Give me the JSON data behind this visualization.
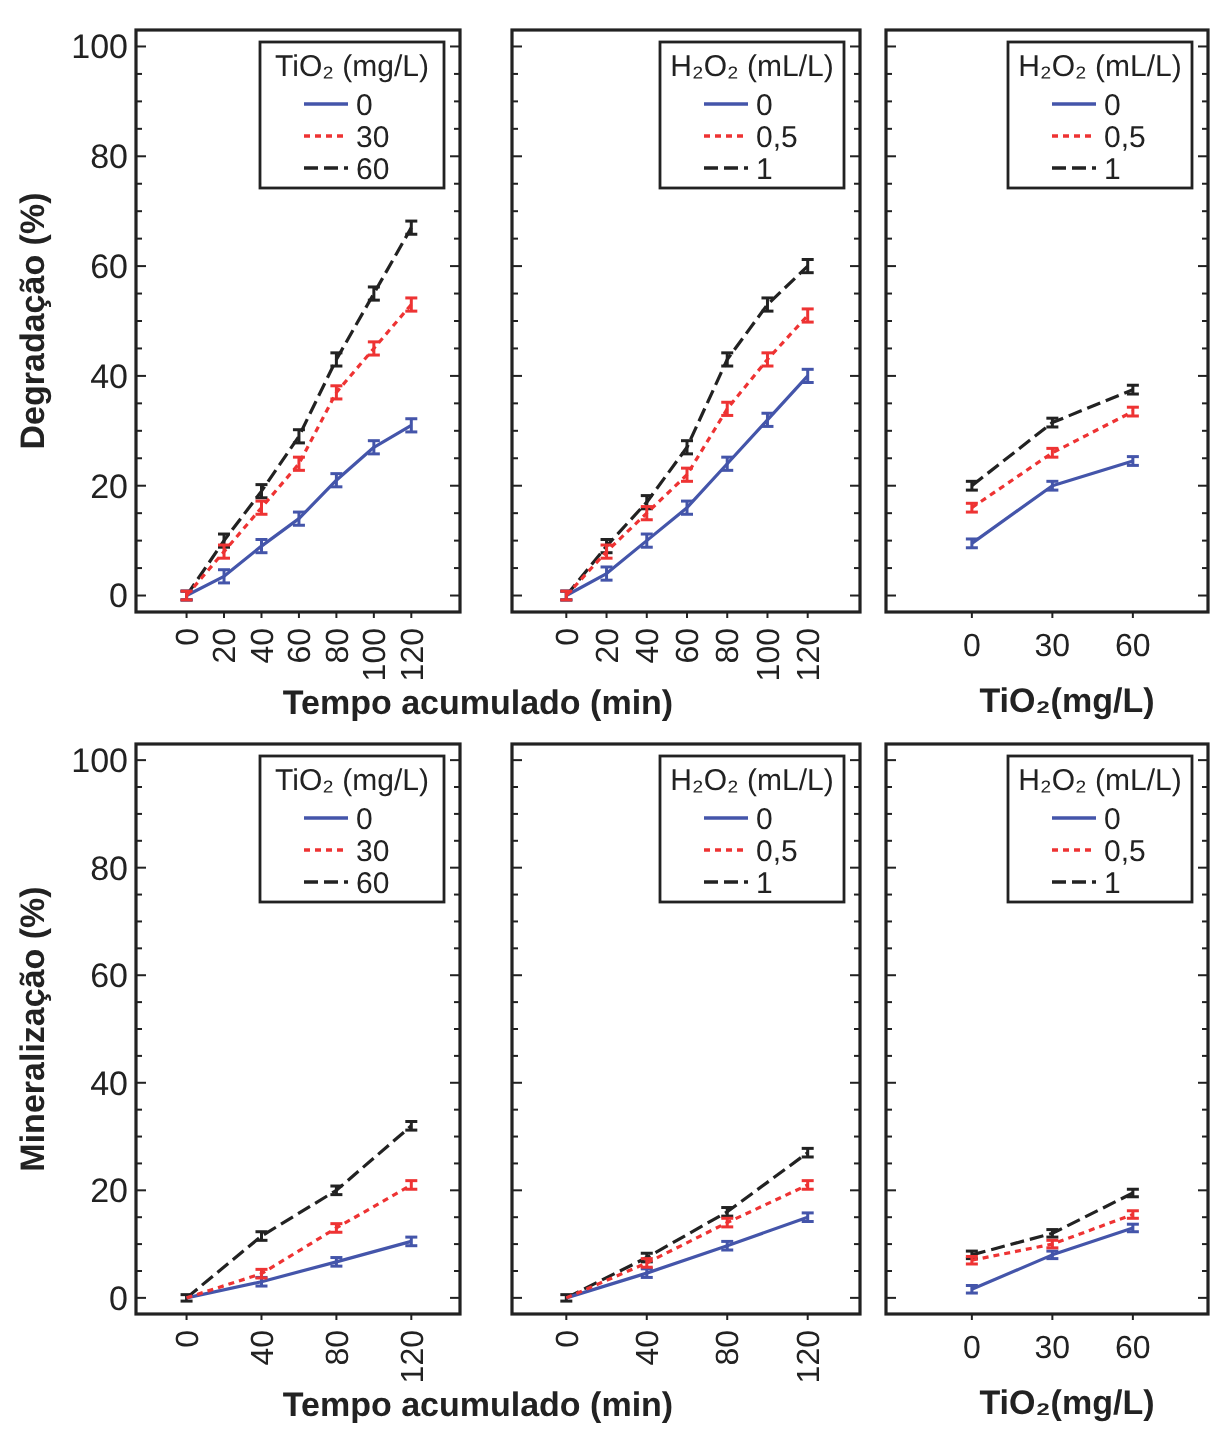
{
  "chart_data": [
    {
      "type": "line",
      "ylabel": "Degradação (%)",
      "xlabel": "Tempo acumulado (min)",
      "legend_title": "TiO₂ (mg/L)",
      "legend": "top right",
      "x": [
        0,
        20,
        40,
        60,
        80,
        100,
        120
      ],
      "xlim": [
        -27,
        146
      ],
      "xticks": [
        0,
        20,
        40,
        60,
        80,
        100,
        120
      ],
      "ylim": [
        -3,
        103
      ],
      "yticks": [
        0,
        {
          "value": 5,
          "label": null
        },
        {
          "value": 10,
          "label": null
        },
        {
          "value": 15,
          "label": null
        },
        20,
        {
          "value": 25,
          "label": null
        },
        {
          "value": 30,
          "label": null
        },
        {
          "value": 35,
          "label": null
        },
        40,
        {
          "value": 45,
          "label": null
        },
        {
          "value": 50,
          "label": null
        },
        {
          "value": 55,
          "label": null
        },
        60,
        {
          "value": 65,
          "label": null
        },
        {
          "value": 70,
          "label": null
        },
        {
          "value": 75,
          "label": null
        },
        80,
        {
          "value": 85,
          "label": null
        },
        {
          "value": 90,
          "label": null
        },
        {
          "value": 95,
          "label": null
        },
        100
      ],
      "series": [
        {
          "name": "0",
          "color": "#4455aa",
          "line_style": "solid",
          "values": [
            0,
            3.5,
            9,
            14,
            21,
            27,
            31
          ],
          "errors": [
            0.8,
            1.2,
            1.2,
            1.2,
            1.2,
            1.2,
            1.2
          ]
        },
        {
          "name": "30",
          "color": "#ee3333",
          "line_style": "dotted",
          "values": [
            0,
            8,
            16,
            24,
            37,
            45,
            53
          ],
          "errors": [
            0.8,
            1.2,
            1.2,
            1.2,
            1.2,
            1.2,
            1.2
          ]
        },
        {
          "name": "60",
          "color": "#222222",
          "line_style": "dashed",
          "values": [
            0,
            10,
            19,
            29,
            43,
            55,
            67
          ],
          "errors": [
            0.8,
            1.2,
            1.2,
            1.2,
            1.2,
            1.2,
            1.2
          ]
        }
      ]
    },
    {
      "type": "line",
      "legend_title": "H₂O₂ (mL/L)",
      "legend": "top right",
      "tick_labels": "x",
      "x": [
        0,
        20,
        40,
        60,
        80,
        100,
        120
      ],
      "xlim": [
        -27,
        146
      ],
      "xticks": [
        0,
        20,
        40,
        60,
        80,
        100,
        120
      ],
      "ylim": [
        -3,
        103
      ],
      "yticks": [
        0,
        {
          "value": 5,
          "label": null
        },
        {
          "value": 10,
          "label": null
        },
        {
          "value": 15,
          "label": null
        },
        20,
        {
          "value": 25,
          "label": null
        },
        {
          "value": 30,
          "label": null
        },
        {
          "value": 35,
          "label": null
        },
        40,
        {
          "value": 45,
          "label": null
        },
        {
          "value": 50,
          "label": null
        },
        {
          "value": 55,
          "label": null
        },
        60,
        {
          "value": 65,
          "label": null
        },
        {
          "value": 70,
          "label": null
        },
        {
          "value": 75,
          "label": null
        },
        80,
        {
          "value": 85,
          "label": null
        },
        {
          "value": 90,
          "label": null
        },
        {
          "value": 95,
          "label": null
        },
        100
      ],
      "series": [
        {
          "name": "0",
          "color": "#4455aa",
          "line_style": "solid",
          "values": [
            0,
            4,
            10,
            16,
            24,
            32,
            40
          ],
          "errors": [
            0.8,
            1.2,
            1.2,
            1.2,
            1.2,
            1.2,
            1.2
          ]
        },
        {
          "name": "0,5",
          "color": "#ee3333",
          "line_style": "dotted",
          "values": [
            0,
            8,
            15,
            22,
            34,
            43,
            51
          ],
          "errors": [
            0.8,
            1.2,
            1.2,
            1.2,
            1.2,
            1.2,
            1.2
          ]
        },
        {
          "name": "1",
          "color": "#222222",
          "line_style": "dashed",
          "values": [
            0,
            9,
            17,
            27,
            43,
            53,
            60
          ],
          "errors": [
            0.8,
            1.2,
            1.2,
            1.2,
            1.2,
            1.2,
            1.2
          ]
        }
      ]
    },
    {
      "type": "line",
      "xlabel": "TiO₂(mg/L)",
      "legend_title": "H₂O₂ (mL/L)",
      "legend": "top right",
      "tick_labels": "x",
      "x": [
        0,
        30,
        60
      ],
      "xlim": [
        -32,
        88
      ],
      "xticks": [
        0,
        30,
        60
      ],
      "ylim": [
        -3,
        103
      ],
      "yticks": [
        0,
        {
          "value": 5,
          "label": null
        },
        {
          "value": 10,
          "label": null
        },
        {
          "value": 15,
          "label": null
        },
        20,
        {
          "value": 25,
          "label": null
        },
        {
          "value": 30,
          "label": null
        },
        {
          "value": 35,
          "label": null
        },
        40,
        {
          "value": 45,
          "label": null
        },
        {
          "value": 50,
          "label": null
        },
        {
          "value": 55,
          "label": null
        },
        60,
        {
          "value": 65,
          "label": null
        },
        {
          "value": 70,
          "label": null
        },
        {
          "value": 75,
          "label": null
        },
        80,
        {
          "value": 85,
          "label": null
        },
        {
          "value": 90,
          "label": null
        },
        {
          "value": 95,
          "label": null
        },
        100
      ],
      "series": [
        {
          "name": "0",
          "color": "#4455aa",
          "line_style": "solid",
          "values": [
            9.5,
            20,
            24.5
          ],
          "errors": [
            0.8,
            0.8,
            0.8
          ]
        },
        {
          "name": "0,5",
          "color": "#ee3333",
          "line_style": "dotted",
          "values": [
            16,
            26,
            33.5
          ],
          "errors": [
            0.8,
            0.8,
            0.8
          ]
        },
        {
          "name": "1",
          "color": "#222222",
          "line_style": "dashed",
          "values": [
            20,
            31.5,
            37.5
          ],
          "errors": [
            0.8,
            0.8,
            0.8
          ]
        }
      ]
    },
    {
      "type": "line",
      "ylabel": "Mineralização (%)",
      "xlabel": "Tempo acumulado (min)",
      "legend_title": "TiO₂ (mg/L)",
      "legend": "top right",
      "x": [
        0,
        40,
        80,
        120
      ],
      "xlim": [
        -27,
        146
      ],
      "xticks": [
        0,
        40,
        80,
        120
      ],
      "ylim": [
        -3,
        103
      ],
      "yticks": [
        0,
        {
          "value": 5,
          "label": null
        },
        {
          "value": 10,
          "label": null
        },
        {
          "value": 15,
          "label": null
        },
        20,
        {
          "value": 25,
          "label": null
        },
        {
          "value": 30,
          "label": null
        },
        {
          "value": 35,
          "label": null
        },
        40,
        {
          "value": 45,
          "label": null
        },
        {
          "value": 50,
          "label": null
        },
        {
          "value": 55,
          "label": null
        },
        60,
        {
          "value": 65,
          "label": null
        },
        {
          "value": 70,
          "label": null
        },
        {
          "value": 75,
          "label": null
        },
        80,
        {
          "value": 85,
          "label": null
        },
        {
          "value": 90,
          "label": null
        },
        {
          "value": 95,
          "label": null
        },
        100
      ],
      "series": [
        {
          "name": "0",
          "color": "#4455aa",
          "line_style": "solid",
          "values": [
            0,
            3,
            6.7,
            10.5
          ],
          "errors": [
            null,
            0.8,
            0.8,
            0.8
          ]
        },
        {
          "name": "30",
          "color": "#ee3333",
          "line_style": "dotted",
          "values": [
            0,
            4.5,
            13,
            21
          ],
          "errors": [
            null,
            0.8,
            0.8,
            0.8
          ]
        },
        {
          "name": "60",
          "color": "#222222",
          "line_style": "dashed",
          "values": [
            0,
            11.5,
            20,
            32
          ],
          "errors": [
            0.6,
            0.8,
            0.8,
            0.8
          ]
        }
      ]
    },
    {
      "type": "line",
      "legend_title": "H₂O₂ (mL/L)",
      "legend": "top right",
      "tick_labels": "x",
      "x": [
        0,
        40,
        80,
        120
      ],
      "xlim": [
        -27,
        146
      ],
      "xticks": [
        0,
        40,
        80,
        120
      ],
      "ylim": [
        -3,
        103
      ],
      "yticks": [
        0,
        {
          "value": 5,
          "label": null
        },
        {
          "value": 10,
          "label": null
        },
        {
          "value": 15,
          "label": null
        },
        20,
        {
          "value": 25,
          "label": null
        },
        {
          "value": 30,
          "label": null
        },
        {
          "value": 35,
          "label": null
        },
        40,
        {
          "value": 45,
          "label": null
        },
        {
          "value": 50,
          "label": null
        },
        {
          "value": 55,
          "label": null
        },
        60,
        {
          "value": 65,
          "label": null
        },
        {
          "value": 70,
          "label": null
        },
        {
          "value": 75,
          "label": null
        },
        80,
        {
          "value": 85,
          "label": null
        },
        {
          "value": 90,
          "label": null
        },
        {
          "value": 95,
          "label": null
        },
        100
      ],
      "series": [
        {
          "name": "0",
          "color": "#4455aa",
          "line_style": "solid",
          "values": [
            0,
            4.6,
            9.7,
            15
          ],
          "errors": [
            null,
            0.8,
            0.8,
            0.8
          ]
        },
        {
          "name": "0,5",
          "color": "#ee3333",
          "line_style": "dotted",
          "values": [
            0,
            6.5,
            14,
            21
          ],
          "errors": [
            null,
            0.8,
            0.8,
            0.8
          ]
        },
        {
          "name": "1",
          "color": "#222222",
          "line_style": "dashed",
          "values": [
            0,
            7.5,
            16,
            27
          ],
          "errors": [
            0.6,
            0.8,
            0.8,
            0.8
          ]
        }
      ]
    },
    {
      "type": "line",
      "xlabel": "TiO₂(mg/L)",
      "legend_title": "H₂O₂ (mL/L)",
      "legend": "top right",
      "tick_labels": "x",
      "x": [
        0,
        30,
        60
      ],
      "xlim": [
        -32,
        88
      ],
      "xticks": [
        0,
        30,
        60
      ],
      "ylim": [
        -3,
        103
      ],
      "yticks": [
        0,
        {
          "value": 5,
          "label": null
        },
        {
          "value": 10,
          "label": null
        },
        {
          "value": 15,
          "label": null
        },
        20,
        {
          "value": 25,
          "label": null
        },
        {
          "value": 30,
          "label": null
        },
        {
          "value": 35,
          "label": null
        },
        40,
        {
          "value": 45,
          "label": null
        },
        {
          "value": 50,
          "label": null
        },
        {
          "value": 55,
          "label": null
        },
        60,
        {
          "value": 65,
          "label": null
        },
        {
          "value": 70,
          "label": null
        },
        {
          "value": 75,
          "label": null
        },
        80,
        {
          "value": 85,
          "label": null
        },
        {
          "value": 90,
          "label": null
        },
        {
          "value": 95,
          "label": null
        },
        100
      ],
      "series": [
        {
          "name": "0",
          "color": "#4455aa",
          "line_style": "solid",
          "values": [
            1.6,
            8,
            13
          ],
          "errors": [
            0.7,
            0.7,
            0.7
          ]
        },
        {
          "name": "0,5",
          "color": "#ee3333",
          "line_style": "dotted",
          "values": [
            7,
            10,
            15.5
          ],
          "errors": [
            0.7,
            0.7,
            0.7
          ]
        },
        {
          "name": "1",
          "color": "#222222",
          "line_style": "dashed",
          "values": [
            8,
            12,
            19.5
          ],
          "errors": [
            0.7,
            0.7,
            0.7
          ]
        }
      ]
    }
  ]
}
